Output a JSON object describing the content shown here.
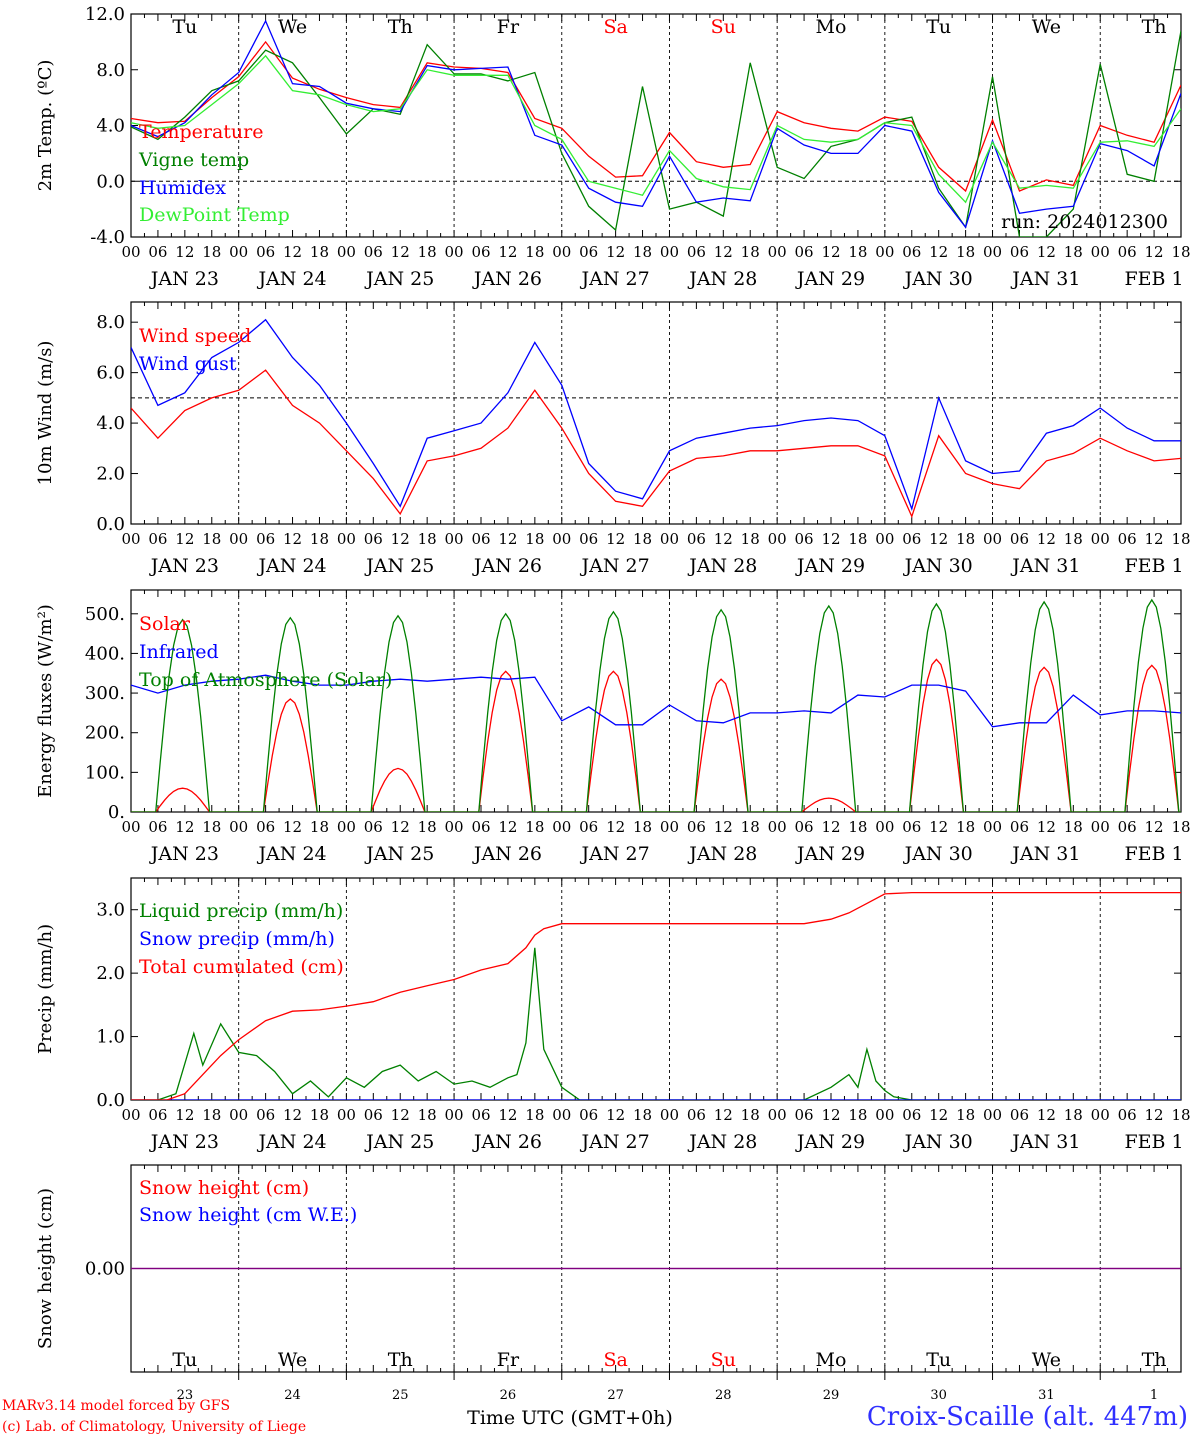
{
  "footer": {
    "credit_line1": "MARv3.14 model forced by GFS",
    "credit_line2": "(c) Lab. of Climatology, University of Liege",
    "station": "Croix-Scaille (alt. 447m)",
    "xlabel": "Time UTC (GMT+0h)"
  },
  "colors": {
    "red": "#ff0000",
    "green": "#008000",
    "blue": "#0000ff",
    "lime": "#33ee33",
    "purple": "#800080"
  },
  "chart_data": [
    {
      "type": "line",
      "id": "temperature",
      "ylabel": "2m Temp. (ºC)",
      "ylim": [
        -4,
        12
      ],
      "yticks": [
        "-4.0",
        "0.0",
        "4.0",
        "8.0",
        "12.0"
      ],
      "ytick_values": [
        -4,
        0,
        4,
        8,
        12
      ],
      "run_label": "run: 2024012300",
      "day_abbr": [
        "Tu",
        "We",
        "Th",
        "Fr",
        "Sa",
        "Su",
        "Mo",
        "Tu",
        "We",
        "Th"
      ],
      "date_labels": [
        "JAN 23",
        "JAN 24",
        "JAN 25",
        "JAN 26",
        "JAN 27",
        "JAN 28",
        "JAN 29",
        "JAN 30",
        "JAN 31",
        "FEB  1"
      ],
      "hour_labels": [
        "00",
        "06",
        "12",
        "18"
      ],
      "x_unit": "hours since 2024-01-23 00 UTC",
      "series": [
        {
          "name": "Temperature",
          "color": "#ff0000",
          "x": [
            0,
            6,
            12,
            18,
            24,
            30,
            36,
            42,
            48,
            54,
            60,
            66,
            72,
            78,
            84,
            90,
            96,
            102,
            108,
            114,
            120,
            126,
            132,
            138,
            144,
            150,
            156,
            162,
            168,
            174,
            180,
            186,
            192,
            198,
            204,
            210,
            216,
            222,
            228,
            234
          ],
          "y": [
            4.5,
            4.2,
            4.3,
            6.0,
            7.5,
            10.0,
            7.4,
            6.6,
            6.0,
            5.5,
            5.3,
            8.5,
            8.2,
            8.1,
            7.8,
            4.5,
            3.8,
            1.8,
            0.3,
            0.4,
            3.5,
            1.4,
            1.0,
            1.2,
            5.0,
            4.2,
            3.8,
            3.6,
            4.6,
            4.3,
            1.0,
            -0.7,
            4.4,
            -0.7,
            0.1,
            -0.3,
            4.0,
            3.3,
            2.8,
            6.9
          ]
        },
        {
          "name": "Vigne temp",
          "color": "#008000",
          "x": [
            0,
            6,
            12,
            18,
            24,
            30,
            36,
            42,
            48,
            54,
            60,
            66,
            72,
            78,
            84,
            90,
            96,
            102,
            108,
            114,
            120,
            126,
            132,
            138,
            144,
            150,
            156,
            162,
            168,
            174,
            180,
            186,
            192,
            198,
            204,
            210,
            216,
            222,
            228,
            234
          ],
          "y": [
            3.9,
            3.0,
            4.6,
            6.5,
            7.2,
            9.4,
            8.5,
            6.0,
            3.4,
            5.2,
            4.8,
            9.8,
            7.7,
            7.7,
            7.2,
            7.8,
            2.0,
            -1.8,
            -3.5,
            6.8,
            -2.0,
            -1.5,
            -2.5,
            8.5,
            1.0,
            0.2,
            2.5,
            3.0,
            4.2,
            4.6,
            -0.5,
            -3.3,
            7.5,
            -4.0,
            -4.0,
            -2.0,
            8.4,
            0.5,
            0.0,
            10.8
          ]
        },
        {
          "name": "Humidex",
          "color": "#0000ff",
          "x": [
            0,
            6,
            12,
            18,
            24,
            30,
            36,
            42,
            48,
            54,
            60,
            66,
            72,
            78,
            84,
            90,
            96,
            102,
            108,
            114,
            120,
            126,
            132,
            138,
            144,
            150,
            156,
            162,
            168,
            174,
            180,
            186,
            192,
            198,
            204,
            210,
            216,
            222,
            228,
            234
          ],
          "y": [
            4.0,
            3.2,
            4.2,
            6.2,
            7.8,
            11.5,
            7.0,
            6.8,
            5.6,
            5.2,
            5.0,
            8.3,
            8.0,
            8.1,
            8.2,
            3.3,
            2.6,
            -0.5,
            -1.5,
            -1.8,
            1.8,
            -1.5,
            -1.2,
            -1.4,
            3.8,
            2.6,
            2.0,
            2.0,
            4.0,
            3.6,
            -0.8,
            -3.3,
            2.9,
            -2.3,
            -2.0,
            -1.8,
            2.7,
            2.2,
            1.1,
            6.3
          ]
        },
        {
          "name": "DewPoint Temp",
          "color": "#33ee33",
          "x": [
            0,
            6,
            12,
            18,
            24,
            30,
            36,
            42,
            48,
            54,
            60,
            66,
            72,
            78,
            84,
            90,
            96,
            102,
            108,
            114,
            120,
            126,
            132,
            138,
            144,
            150,
            156,
            162,
            168,
            174,
            180,
            186,
            192,
            198,
            204,
            210,
            216,
            222,
            228,
            234
          ],
          "y": [
            4.2,
            3.8,
            4.0,
            5.5,
            7.0,
            9.0,
            6.5,
            6.2,
            5.5,
            5.0,
            5.2,
            8.0,
            7.6,
            7.6,
            7.6,
            4.0,
            3.0,
            0.0,
            -0.5,
            -1.0,
            2.2,
            0.2,
            -0.4,
            -0.6,
            4.0,
            3.0,
            2.8,
            3.0,
            4.2,
            4.0,
            0.5,
            -1.5,
            2.8,
            -0.5,
            -0.3,
            -0.5,
            2.8,
            2.9,
            2.5,
            5.2
          ]
        }
      ]
    },
    {
      "type": "line",
      "id": "wind",
      "ylabel": "10m Wind (m/s)",
      "ylim": [
        0,
        8.8
      ],
      "yticks": [
        "0.0",
        "2.0",
        "4.0",
        "6.0",
        "8.0"
      ],
      "ytick_values": [
        0,
        2,
        4,
        6,
        8
      ],
      "date_labels": [
        "JAN 23",
        "JAN 24",
        "JAN 25",
        "JAN 26",
        "JAN 27",
        "JAN 28",
        "JAN 29",
        "JAN 30",
        "JAN 31",
        "FEB  1"
      ],
      "hour_labels": [
        "00",
        "06",
        "12",
        "18"
      ],
      "series": [
        {
          "name": "Wind speed",
          "color": "#ff0000",
          "x": [
            0,
            6,
            12,
            18,
            24,
            30,
            36,
            42,
            48,
            54,
            60,
            66,
            72,
            78,
            84,
            90,
            96,
            102,
            108,
            114,
            120,
            126,
            132,
            138,
            144,
            150,
            156,
            162,
            168,
            174,
            180,
            186,
            192,
            198,
            204,
            210,
            216,
            222,
            228,
            234
          ],
          "y": [
            4.6,
            3.4,
            4.5,
            5.0,
            5.3,
            6.1,
            4.7,
            4.0,
            2.9,
            1.8,
            0.4,
            2.5,
            2.7,
            3.0,
            3.8,
            5.3,
            3.8,
            2.0,
            0.9,
            0.7,
            2.1,
            2.6,
            2.7,
            2.9,
            2.9,
            3.0,
            3.1,
            3.1,
            2.7,
            0.3,
            3.5,
            2.0,
            1.6,
            1.4,
            2.5,
            2.8,
            3.4,
            2.9,
            2.5,
            2.6
          ]
        },
        {
          "name": "Wind gust",
          "color": "#0000ff",
          "x": [
            0,
            6,
            12,
            18,
            24,
            30,
            36,
            42,
            48,
            54,
            60,
            66,
            72,
            78,
            84,
            90,
            96,
            102,
            108,
            114,
            120,
            126,
            132,
            138,
            144,
            150,
            156,
            162,
            168,
            174,
            180,
            186,
            192,
            198,
            204,
            210,
            216,
            222,
            228,
            234
          ],
          "y": [
            7.0,
            4.7,
            5.2,
            6.6,
            7.2,
            8.1,
            6.6,
            5.5,
            4.0,
            2.4,
            0.7,
            3.4,
            3.7,
            4.0,
            5.2,
            7.2,
            5.5,
            2.4,
            1.3,
            1.0,
            2.9,
            3.4,
            3.6,
            3.8,
            3.9,
            4.1,
            4.2,
            4.1,
            3.5,
            0.6,
            5.0,
            2.5,
            2.0,
            2.1,
            3.6,
            3.9,
            4.6,
            3.8,
            3.3,
            3.3
          ]
        }
      ]
    },
    {
      "type": "line",
      "id": "energy",
      "ylabel": "Energy fluxes (W/m²)",
      "ylim": [
        0,
        560
      ],
      "yticks": [
        "0.",
        "100.",
        "200.",
        "300.",
        "400.",
        "500."
      ],
      "ytick_values": [
        0,
        100,
        200,
        300,
        400,
        500
      ],
      "date_labels": [
        "JAN 23",
        "JAN 24",
        "JAN 25",
        "JAN 26",
        "JAN 27",
        "JAN 28",
        "JAN 29",
        "JAN 30",
        "JAN 31",
        "FEB  1"
      ],
      "hour_labels": [
        "00",
        "06",
        "12",
        "18"
      ],
      "series": [
        {
          "name": "Solar",
          "color": "#ff0000",
          "kind": "diurnal",
          "peaks": [
            60,
            285,
            110,
            355,
            355,
            335,
            35,
            385,
            365,
            370
          ]
        },
        {
          "name": "Infrared",
          "color": "#0000ff",
          "x": [
            0,
            6,
            12,
            18,
            24,
            30,
            36,
            42,
            48,
            54,
            60,
            66,
            72,
            78,
            84,
            90,
            96,
            102,
            108,
            114,
            120,
            126,
            132,
            138,
            144,
            150,
            156,
            162,
            168,
            174,
            180,
            186,
            192,
            198,
            204,
            210,
            216,
            222,
            228,
            234
          ],
          "y": [
            320,
            300,
            320,
            330,
            335,
            345,
            330,
            320,
            320,
            330,
            335,
            330,
            335,
            340,
            335,
            340,
            230,
            265,
            220,
            220,
            270,
            230,
            225,
            250,
            250,
            255,
            250,
            295,
            290,
            320,
            320,
            305,
            215,
            225,
            225,
            295,
            245,
            255,
            255,
            250
          ]
        },
        {
          "name": "Top of Atmosphere (Solar)",
          "color": "#008000",
          "kind": "diurnal",
          "peaks": [
            485,
            490,
            495,
            500,
            505,
            510,
            520,
            525,
            530,
            535
          ]
        }
      ]
    },
    {
      "type": "line",
      "id": "precip",
      "ylabel": "Precip (mm/h)",
      "ylim": [
        0,
        3.5
      ],
      "yticks": [
        "0.0",
        "1.0",
        "2.0",
        "3.0"
      ],
      "ytick_values": [
        0,
        1,
        2,
        3
      ],
      "date_labels": [
        "JAN 23",
        "JAN 24",
        "JAN 25",
        "JAN 26",
        "JAN 27",
        "JAN 28",
        "JAN 29",
        "JAN 30",
        "JAN 31",
        "FEB  1"
      ],
      "hour_labels": [
        "00",
        "06",
        "12",
        "18"
      ],
      "series": [
        {
          "name": "Liquid precip (mm/h)",
          "color": "#008000",
          "x": [
            0,
            6,
            10,
            14,
            16,
            20,
            24,
            28,
            32,
            36,
            40,
            44,
            48,
            52,
            56,
            60,
            64,
            68,
            72,
            76,
            80,
            84,
            86,
            88,
            90,
            92,
            96,
            100,
            120,
            150,
            156,
            160,
            162,
            164,
            166,
            168,
            170,
            174,
            234
          ],
          "y": [
            0,
            0,
            0.1,
            1.05,
            0.55,
            1.2,
            0.75,
            0.7,
            0.45,
            0.1,
            0.3,
            0.05,
            0.35,
            0.2,
            0.45,
            0.55,
            0.3,
            0.45,
            0.25,
            0.3,
            0.2,
            0.35,
            0.4,
            0.9,
            2.4,
            0.8,
            0.2,
            0,
            0,
            0,
            0.2,
            0.4,
            0.2,
            0.8,
            0.3,
            0.15,
            0.05,
            0,
            0
          ]
        },
        {
          "name": "Snow precip (mm/h)",
          "color": "#0000ff",
          "x": [
            0,
            234
          ],
          "y": [
            0,
            0
          ]
        },
        {
          "name": "Total cumulated (cm)",
          "color": "#ff0000",
          "x": [
            0,
            8,
            12,
            16,
            20,
            24,
            30,
            36,
            42,
            48,
            54,
            60,
            66,
            72,
            78,
            84,
            88,
            90,
            92,
            96,
            102,
            114,
            132,
            150,
            156,
            160,
            164,
            168,
            174,
            186,
            234
          ],
          "y": [
            0,
            0,
            0.1,
            0.4,
            0.7,
            0.95,
            1.25,
            1.4,
            1.42,
            1.48,
            1.55,
            1.7,
            1.8,
            1.9,
            2.05,
            2.15,
            2.4,
            2.6,
            2.7,
            2.78,
            2.78,
            2.78,
            2.78,
            2.78,
            2.85,
            2.95,
            3.1,
            3.25,
            3.27,
            3.27,
            3.27
          ]
        }
      ]
    },
    {
      "type": "line",
      "id": "snow",
      "ylabel": "Snow height (cm)",
      "ylim": [
        -1,
        1
      ],
      "yticks": [
        "0.00"
      ],
      "ytick_values": [
        0
      ],
      "day_abbr": [
        "Tu",
        "We",
        "Th",
        "Fr",
        "Sa",
        "Su",
        "Mo",
        "Tu",
        "We",
        "Th"
      ],
      "day_numbers": [
        "23",
        "24",
        "25",
        "26",
        "27",
        "28",
        "29",
        "30",
        "31",
        "1"
      ],
      "series": [
        {
          "name": "Snow height (cm)",
          "color": "#ff0000",
          "x": [
            0,
            234
          ],
          "y": [
            0,
            0
          ]
        },
        {
          "name": "Snow height (cm W.E.)",
          "color": "#0000ff",
          "x": [
            0,
            234
          ],
          "y": [
            0,
            0
          ]
        }
      ]
    }
  ]
}
